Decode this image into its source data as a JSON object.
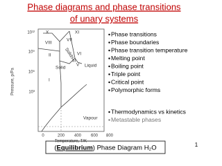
{
  "title": {
    "line1": "Phase diagrams and phase transitions",
    "line2": "of unary systems"
  },
  "diagram": {
    "y_axis_label": "Pressure, p/Pa",
    "x_axis_label": "Temperature, T/K",
    "y_ticks": [
      "10¹²",
      "10⁹",
      "10⁶",
      "10³"
    ],
    "x_ticks": [
      "0",
      "200",
      "400",
      "600",
      "800"
    ],
    "regions": [
      "X",
      "XI",
      "VIII",
      "VII",
      "Solids",
      "II",
      "VI",
      "III",
      "V",
      "Liquid",
      "Solid",
      "I",
      "Vapour"
    ]
  },
  "bullets": [
    "Phase transitions",
    "Phase boundaries",
    "Phase transition temperature",
    "Melting point",
    "Boiling point",
    "Triple point",
    "Critical point",
    "Polymorphic forms"
  ],
  "bullets2": [
    "Thermodynamics vs kinetics",
    "Metastable phases"
  ],
  "caption": {
    "open": "(",
    "emphasis": "Equilibrium",
    "rest": ") Phase Diagram H₂O"
  },
  "page_number": "1"
}
